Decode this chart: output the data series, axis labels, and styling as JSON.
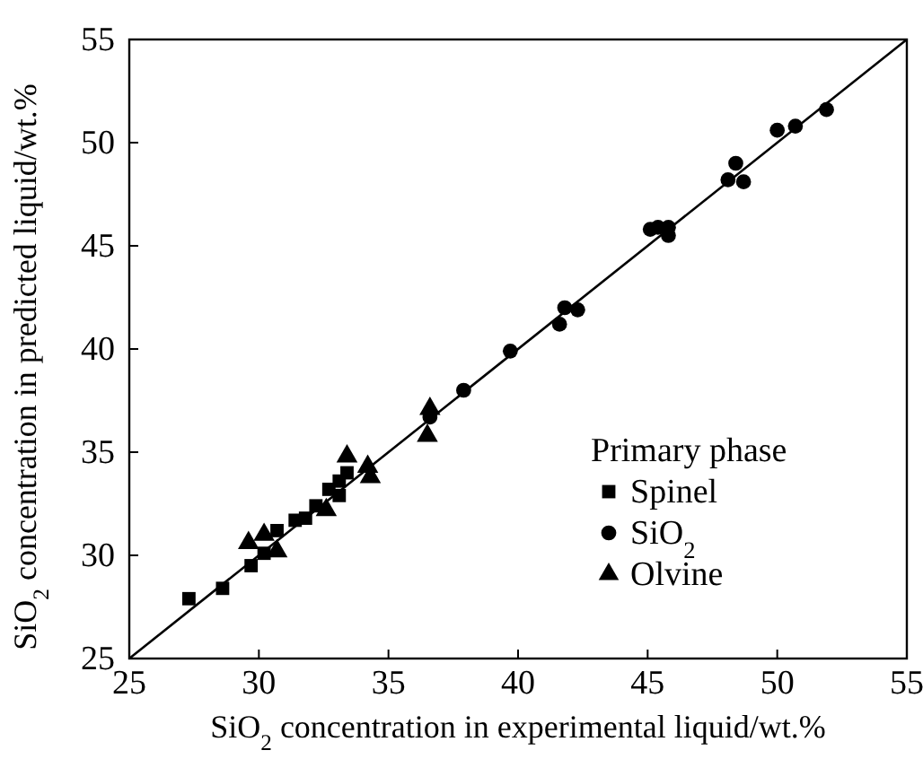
{
  "chart_data": {
    "type": "scatter",
    "xlabel": "SiO$_{2}$ concentration in experimental liquid/wt.%",
    "ylabel": "SiO$_{2}$ concentration in predicted liquid/wt.%",
    "legend_title": "Primary phase",
    "legend": "bottom right",
    "xlim": [
      25,
      55
    ],
    "ylim": [
      25,
      55
    ],
    "xticks": [
      25,
      30,
      35,
      40,
      45,
      50,
      55
    ],
    "yticks": [
      25,
      30,
      35,
      40,
      45,
      50,
      55
    ],
    "grid": false,
    "series": [
      {
        "type": "line",
        "color": "#000000",
        "marker": "none",
        "x": [
          25,
          55
        ],
        "values": [
          25,
          55
        ]
      },
      {
        "name": "Spinel",
        "color": "#000000",
        "marker": "square",
        "x": [
          27.3,
          28.6,
          29.7,
          30.2,
          30.7,
          31.4,
          31.8,
          32.2,
          32.7,
          33.1,
          33.1,
          33.4
        ],
        "values": [
          27.9,
          28.4,
          29.5,
          30.1,
          31.2,
          31.7,
          31.8,
          32.4,
          33.2,
          33.6,
          32.9,
          34.0
        ]
      },
      {
        "name": "SiO$_{2}$",
        "color": "#000000",
        "marker": "circle",
        "x": [
          36.6,
          37.9,
          39.7,
          41.6,
          41.8,
          42.3,
          45.1,
          45.4,
          45.8,
          45.8,
          48.1,
          48.4,
          48.7,
          50.0,
          50.7,
          51.9
        ],
        "values": [
          36.7,
          38.0,
          39.9,
          41.2,
          42.0,
          41.9,
          45.8,
          45.9,
          45.9,
          45.5,
          48.2,
          49.0,
          48.1,
          50.6,
          50.8,
          51.6
        ]
      },
      {
        "name": "Olvine",
        "color": "#000000",
        "marker": "triangle",
        "x": [
          29.6,
          30.2,
          30.7,
          32.6,
          33.4,
          34.2,
          34.3,
          36.6,
          36.5
        ],
        "values": [
          30.6,
          31.0,
          30.2,
          32.2,
          34.8,
          34.3,
          33.8,
          37.1,
          35.8
        ]
      }
    ]
  }
}
